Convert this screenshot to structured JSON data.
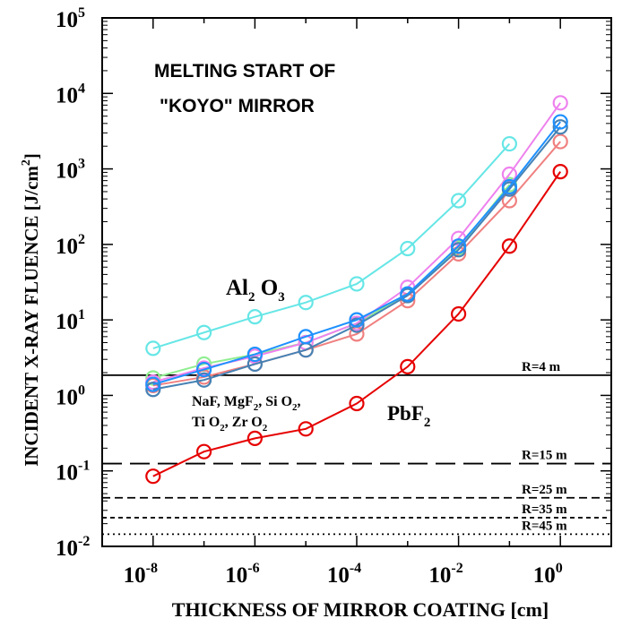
{
  "chart_data": {
    "type": "line",
    "title_lines": [
      "MELTING START OF",
      "\"KOYO\" MIRROR"
    ],
    "xlabel": "THICKNESS OF MIRROR COATING [cm]",
    "ylabel_main": "INCIDENT X-RAY FLUENCE [J/cm",
    "ylabel_sup": "2",
    "ylabel_close": "]",
    "xscale": "log",
    "yscale": "log",
    "xlim": [
      1e-09,
      10
    ],
    "ylim": [
      0.01,
      100000
    ],
    "x_ticks": [
      {
        "base": "10",
        "exp": "-8",
        "value": 1e-08
      },
      {
        "base": "10",
        "exp": "-6",
        "value": 1e-06
      },
      {
        "base": "10",
        "exp": "-4",
        "value": 0.0001
      },
      {
        "base": "10",
        "exp": "-2",
        "value": 0.01
      },
      {
        "base": "10",
        "exp": "0",
        "value": 1
      }
    ],
    "y_ticks": [
      {
        "base": "10",
        "exp": "-2",
        "value": 0.01
      },
      {
        "base": "10",
        "exp": "-1",
        "value": 0.1
      },
      {
        "base": "10",
        "exp": "0",
        "value": 1
      },
      {
        "base": "10",
        "exp": "1",
        "value": 10
      },
      {
        "base": "10",
        "exp": "2",
        "value": 100
      },
      {
        "base": "10",
        "exp": "3",
        "value": 1000
      },
      {
        "base": "10",
        "exp": "4",
        "value": 10000
      },
      {
        "base": "10",
        "exp": "5",
        "value": 100000
      }
    ],
    "x": [
      1e-08,
      1e-07,
      1e-06,
      1e-05,
      0.0001,
      0.001,
      0.01,
      0.1,
      1
    ],
    "series": [
      {
        "color": "#66e6e6",
        "values": [
          4.2,
          6.8,
          11,
          17,
          30,
          88,
          380,
          2150,
          null
        ]
      },
      {
        "color": "#90ee90",
        "values": [
          1.7,
          2.6,
          3.5,
          5,
          9,
          22,
          90,
          620,
          null
        ]
      },
      {
        "color": "#ee82ee",
        "values": [
          1.5,
          2.3,
          3.3,
          5,
          9,
          27,
          120,
          850,
          7500
        ]
      },
      {
        "color": "#f08080",
        "values": [
          1.35,
          1.75,
          2.6,
          4,
          6.5,
          18,
          75,
          380,
          2300
        ]
      },
      {
        "color": "#4682b4",
        "values": [
          1.2,
          1.6,
          2.6,
          4,
          8.5,
          21,
          85,
          540,
          3600
        ]
      },
      {
        "color": "#1e90ff",
        "values": [
          1.4,
          2.2,
          3.5,
          6,
          10,
          22,
          95,
          580,
          4200
        ]
      },
      {
        "color": "#e60000",
        "values": [
          0.085,
          0.18,
          0.27,
          0.36,
          0.78,
          2.4,
          12,
          95,
          920
        ]
      }
    ],
    "hlines": [
      {
        "label": "R=4 m",
        "y": 1.85,
        "style": "solid"
      },
      {
        "label": "R=15 m",
        "y": 0.125,
        "style": "longdash"
      },
      {
        "label": "R=25 m",
        "y": 0.044,
        "style": "dash"
      },
      {
        "label": "R=35 m",
        "y": 0.024,
        "style": "shortdash"
      },
      {
        "label": "R=45 m",
        "y": 0.0145,
        "style": "dot"
      }
    ],
    "annotations": {
      "al2o3": {
        "base": "Al",
        "sub1": "2",
        "mid": " O",
        "sub2": "3"
      },
      "fluorides_1": "NaF, MgF",
      "fluorides_1_sub": "2",
      "fluorides_1_tail": ", Si O",
      "fluorides_1_tail_sub": "2",
      "fluorides_1_end": ",",
      "fluorides_2a": "Ti O",
      "fluorides_2a_sub": "2",
      "fluorides_2b": ", Zr O",
      "fluorides_2b_sub": "2",
      "pbf2": {
        "base": "PbF",
        "sub": "2"
      }
    }
  }
}
